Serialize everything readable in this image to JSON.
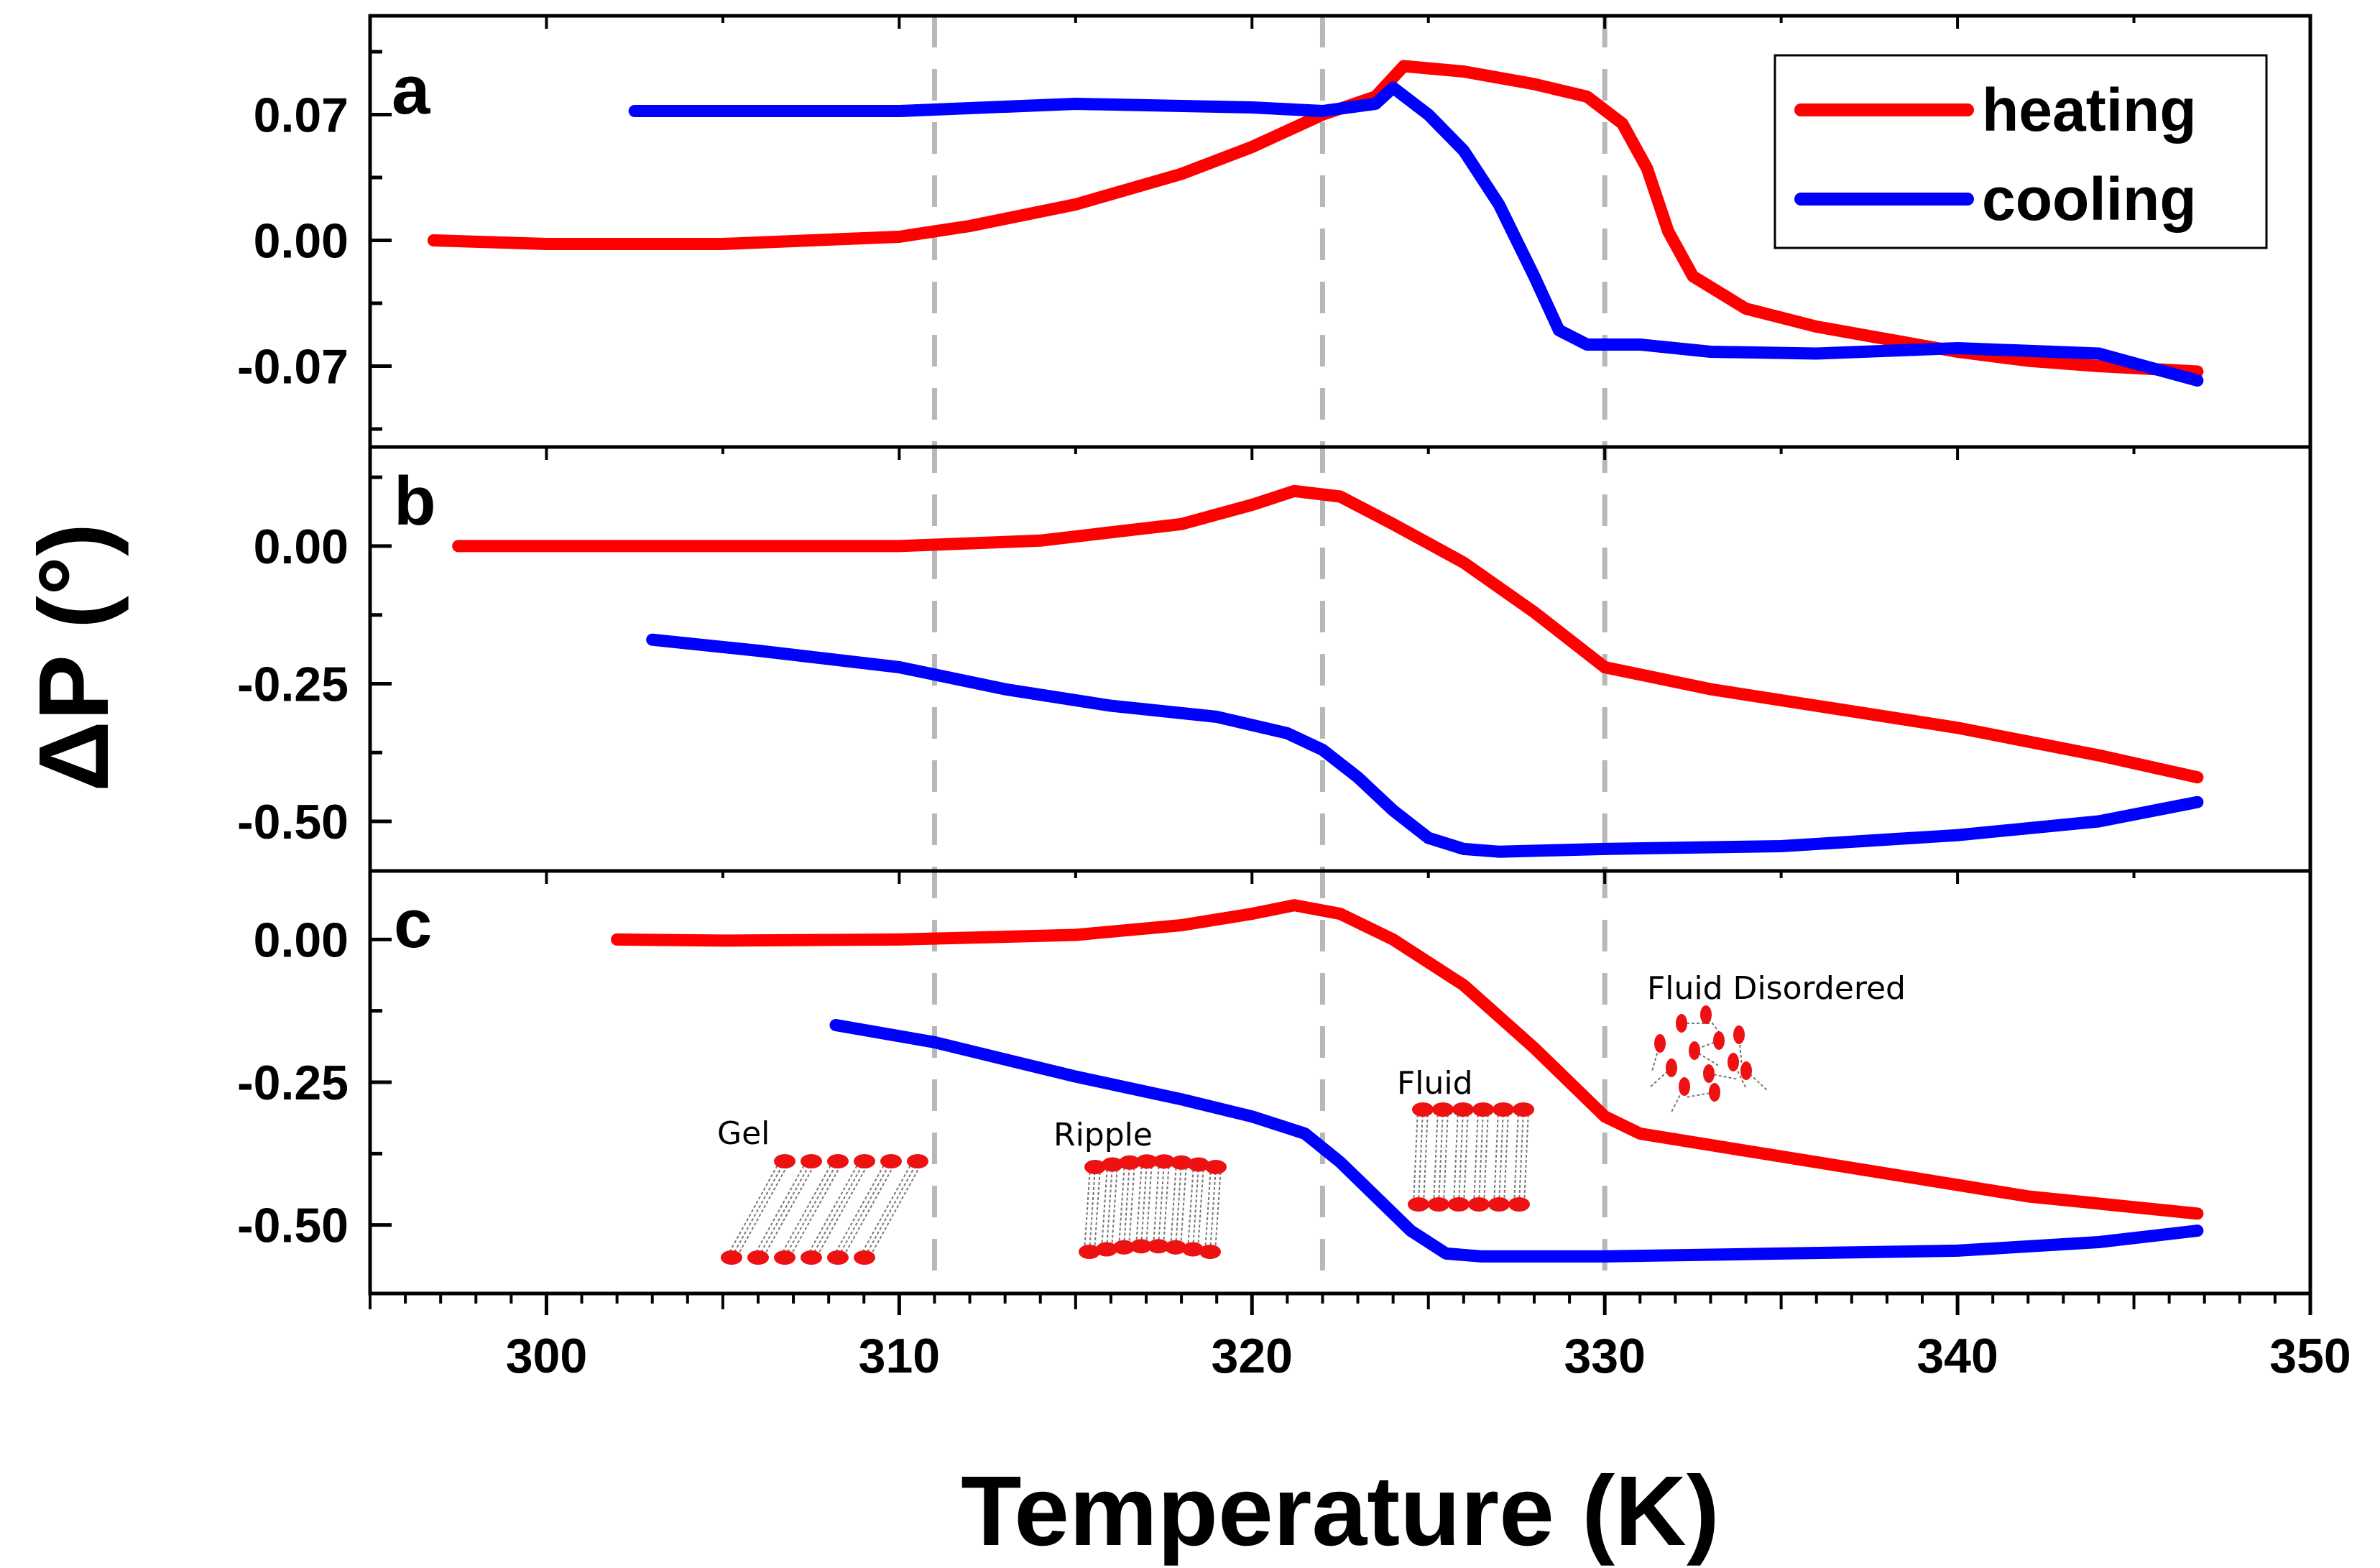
{
  "chart_data": {
    "type": "line",
    "xlabel": "Temperature (K)",
    "ylabel": "ΔP (°)",
    "xlim": [
      295,
      350
    ],
    "xticks": [
      300,
      310,
      320,
      330,
      340,
      350
    ],
    "vlines": [
      311,
      322,
      330
    ],
    "legend": {
      "placement": "top-right",
      "entries": [
        "heating",
        "cooling"
      ]
    },
    "colors": {
      "heating": "#ff0000",
      "cooling": "#0000ff",
      "vline": "#b8b8b8"
    },
    "panels": [
      {
        "label": "a",
        "ylim": [
          -0.115,
          0.125
        ],
        "yticks": [
          "0.07",
          "0.00",
          "-0.07"
        ],
        "ytick_values": [
          0.07,
          0.0,
          -0.07
        ],
        "series": [
          {
            "name": "heating",
            "x": [
              296.8,
              300,
              305,
              310,
              312,
              315,
              318,
              320,
              322,
              323.5,
              324.3,
              326,
              328,
              329.5,
              330.5,
              331.2,
              331.8,
              332.5,
              334,
              336,
              338,
              340,
              342,
              344,
              346.8
            ],
            "y": [
              0.0,
              -0.002,
              -0.002,
              0.002,
              0.008,
              0.02,
              0.037,
              0.052,
              0.07,
              0.08,
              0.097,
              0.094,
              0.087,
              0.08,
              0.065,
              0.04,
              0.005,
              -0.02,
              -0.038,
              -0.048,
              -0.055,
              -0.062,
              -0.067,
              -0.07,
              -0.073
            ]
          },
          {
            "name": "cooling",
            "x": [
              302.5,
              305,
              310,
              315,
              320,
              322,
              323.5,
              324,
              325,
              326,
              327,
              328,
              328.7,
              329.5,
              331,
              333,
              336,
              340,
              344,
              346.8
            ],
            "y": [
              0.072,
              0.072,
              0.072,
              0.076,
              0.074,
              0.072,
              0.076,
              0.085,
              0.07,
              0.05,
              0.02,
              -0.02,
              -0.05,
              -0.058,
              -0.058,
              -0.062,
              -0.063,
              -0.06,
              -0.063,
              -0.078
            ]
          }
        ]
      },
      {
        "label": "b",
        "ylim": [
          -0.59,
          0.18
        ],
        "yticks": [
          "0.00",
          "-0.25",
          "-0.50"
        ],
        "ytick_values": [
          0.0,
          -0.25,
          -0.5
        ],
        "series": [
          {
            "name": "heating",
            "x": [
              297.5,
              305,
              310,
              314,
              318,
              320,
              321.2,
              322.5,
              324,
              326,
              328,
              330,
              333,
              336,
              340,
              344,
              346.8
            ],
            "y": [
              0.0,
              0.0,
              0.0,
              0.01,
              0.04,
              0.075,
              0.1,
              0.09,
              0.04,
              -0.03,
              -0.12,
              -0.22,
              -0.26,
              -0.29,
              -0.33,
              -0.38,
              -0.42
            ]
          },
          {
            "name": "cooling",
            "x": [
              303,
              306,
              310,
              313,
              316,
              319,
              321,
              322,
              323,
              324,
              325,
              326,
              327,
              330,
              335,
              340,
              344,
              346.8
            ],
            "y": [
              -0.17,
              -0.19,
              -0.22,
              -0.26,
              -0.29,
              -0.31,
              -0.34,
              -0.37,
              -0.42,
              -0.48,
              -0.53,
              -0.55,
              -0.555,
              -0.55,
              -0.545,
              -0.525,
              -0.5,
              -0.465
            ]
          }
        ]
      },
      {
        "label": "c",
        "ylim": [
          -0.62,
          0.12
        ],
        "yticks": [
          "0.00",
          "-0.25",
          "-0.50"
        ],
        "ytick_values": [
          0.0,
          -0.25,
          -0.5
        ],
        "series": [
          {
            "name": "heating",
            "x": [
              302,
              305,
              310,
              315,
              318,
              320,
              321.2,
              322.5,
              324,
              326,
              328,
              330,
              331,
              334,
              338,
              342,
              346.8
            ],
            "y": [
              0.0,
              -0.002,
              0.0,
              0.008,
              0.025,
              0.045,
              0.06,
              0.045,
              0.0,
              -0.08,
              -0.19,
              -0.31,
              -0.34,
              -0.37,
              -0.41,
              -0.45,
              -0.48
            ]
          },
          {
            "name": "cooling",
            "x": [
              308.2,
              311,
              315,
              318,
              320,
              321.5,
              322.5,
              323.5,
              324.5,
              325.5,
              326.5,
              330,
              335,
              340,
              344,
              346.8
            ],
            "y": [
              -0.15,
              -0.18,
              -0.24,
              -0.28,
              -0.31,
              -0.34,
              -0.39,
              -0.45,
              -0.51,
              -0.55,
              -0.555,
              -0.555,
              -0.55,
              -0.545,
              -0.53,
              -0.51
            ]
          }
        ]
      }
    ],
    "annotations": {
      "gel": "Gel",
      "ripple": "Ripple",
      "fluid": "Fluid",
      "fluid_disordered": "Fluid Disordered"
    }
  }
}
